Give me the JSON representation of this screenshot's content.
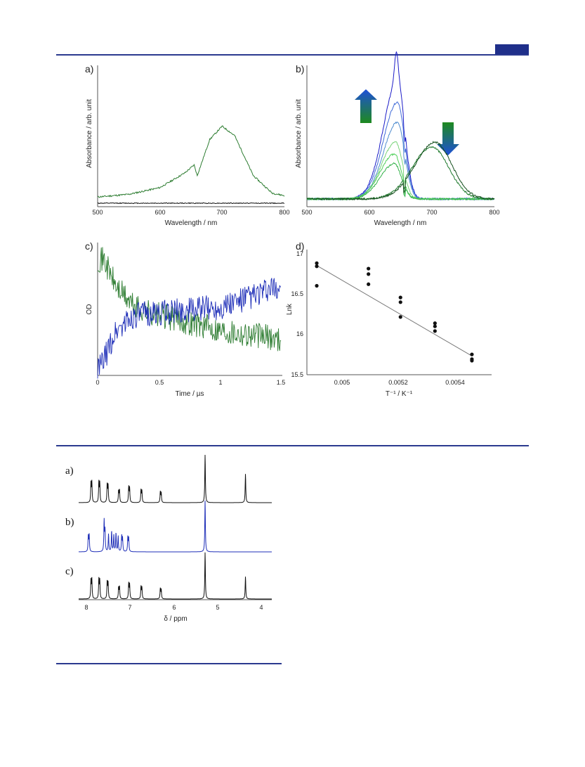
{
  "figure1": {
    "panel_a": {
      "label": "a)",
      "xlabel": "Wavelength / nm",
      "ylabel": "Absorbance / arb. unit",
      "xticks": [
        "500",
        "600",
        "700",
        "800"
      ]
    },
    "panel_b": {
      "label": "b)",
      "xlabel": "Wavelength / nm",
      "ylabel": "Absorbance / arb. unit",
      "xticks": [
        "500",
        "600",
        "700",
        "800"
      ]
    },
    "panel_c": {
      "label": "c)",
      "xlabel": "Time / µs",
      "ylabel": "OD",
      "xticks": [
        "0",
        "0.5",
        "1",
        "1.5"
      ]
    },
    "panel_d": {
      "label": "d)",
      "xlabel": "T⁻¹ / K⁻¹",
      "ylabel": "Lnk",
      "xticks": [
        "0.005",
        "0.0052",
        "0.0054"
      ],
      "yticks": [
        "15.5",
        "16",
        "16.5",
        "17"
      ]
    }
  },
  "figure2": {
    "labels": [
      "a)",
      "b)",
      "c)"
    ],
    "xlabel": "δ / ppm",
    "xticks": [
      "8",
      "7",
      "6",
      "5",
      "4"
    ]
  },
  "chart_data": [
    {
      "type": "line",
      "panel": "a",
      "xlabel": "Wavelength / nm",
      "ylabel": "Absorbance / arb. unit",
      "xlim": [
        500,
        800
      ],
      "series": [
        {
          "x": [
            500,
            550,
            600,
            640,
            655,
            660,
            680,
            700,
            720,
            750,
            780,
            800
          ],
          "values": [
            0.02,
            0.04,
            0.09,
            0.2,
            0.26,
            0.18,
            0.45,
            0.55,
            0.48,
            0.18,
            0.05,
            0.03
          ],
          "color": "#2e7d32"
        },
        {
          "x": [
            500,
            800
          ],
          "values": [
            0.0,
            0.0
          ],
          "color": "#111111"
        }
      ]
    },
    {
      "type": "line",
      "panel": "b",
      "xlabel": "Wavelength / nm",
      "ylabel": "Absorbance / arb. unit",
      "xlim": [
        500,
        800
      ],
      "series": [
        {
          "peak_nm": 645,
          "height": 1.0,
          "color": "#1c1cc8"
        },
        {
          "peak_nm": 645,
          "height": 0.82,
          "color": "#3f6ad8"
        },
        {
          "peak_nm": 645,
          "height": 0.65,
          "color": "#4f8ccf"
        },
        {
          "peak_nm": 642,
          "height": 0.48,
          "color": "#7ad47a"
        },
        {
          "peak_nm": 640,
          "height": 0.38,
          "color": "#4fd05a"
        },
        {
          "peak_nm": 640,
          "height": 0.3,
          "color": "#34b24a"
        },
        {
          "peak_nm": 700,
          "height": 0.44,
          "color": "#1e7a2c"
        },
        {
          "peak_nm": 705,
          "height": 0.48,
          "color": "#134f1c"
        }
      ],
      "arrows": [
        {
          "direction": "up",
          "colors": [
            "#1e8a1e",
            "#1e4fd8"
          ]
        },
        {
          "direction": "down",
          "colors": [
            "#1e8a1e",
            "#1e4fd8"
          ]
        }
      ]
    },
    {
      "type": "line",
      "panel": "c",
      "xlabel": "Time / µs",
      "ylabel": "OD",
      "xlim": [
        0,
        1.5
      ],
      "series": [
        {
          "color": "#2e7d32",
          "x": [
            0,
            0.05,
            0.15,
            0.3,
            0.5,
            1.0,
            1.5
          ],
          "values": [
            0.95,
            0.95,
            0.72,
            0.55,
            0.48,
            0.36,
            0.28
          ]
        },
        {
          "color": "#1f2fb8",
          "x": [
            0,
            0.05,
            0.15,
            0.3,
            0.5,
            1.0,
            1.5
          ],
          "values": [
            0.02,
            0.1,
            0.35,
            0.48,
            0.5,
            0.55,
            0.72
          ]
        }
      ]
    },
    {
      "type": "scatter",
      "panel": "d",
      "xlabel": "T⁻¹ / K⁻¹",
      "ylabel": "Lnk",
      "xlim": [
        0.0048,
        0.00555
      ],
      "ylim": [
        15.5,
        17.05
      ],
      "points": [
        {
          "x": 0.00484,
          "y": 16.93
        },
        {
          "x": 0.00484,
          "y": 16.89
        },
        {
          "x": 0.00484,
          "y": 16.64
        },
        {
          "x": 0.00505,
          "y": 16.86
        },
        {
          "x": 0.00505,
          "y": 16.79
        },
        {
          "x": 0.00505,
          "y": 16.66
        },
        {
          "x": 0.00518,
          "y": 16.49
        },
        {
          "x": 0.00518,
          "y": 16.43
        },
        {
          "x": 0.00518,
          "y": 16.24
        },
        {
          "x": 0.00532,
          "y": 16.16
        },
        {
          "x": 0.00532,
          "y": 16.12
        },
        {
          "x": 0.00532,
          "y": 16.06
        },
        {
          "x": 0.00547,
          "y": 15.76
        },
        {
          "x": 0.00547,
          "y": 15.7
        },
        {
          "x": 0.00547,
          "y": 15.68
        }
      ],
      "fit": {
        "x": [
          0.00484,
          0.00547
        ],
        "y": [
          16.9,
          15.74
        ]
      }
    },
    {
      "type": "line",
      "figure": "nmr",
      "xlabel": "δ / ppm",
      "xlim": [
        8.2,
        3.8
      ],
      "spectra": [
        {
          "label": "a)",
          "color": "#111111",
          "peaks_ppm": [
            7.92,
            7.9,
            7.74,
            7.72,
            7.55,
            7.53,
            7.29,
            7.27,
            7.06,
            7.04,
            6.78,
            6.76,
            6.34,
            6.32,
            5.32,
            4.4
          ],
          "heights": [
            0.4,
            0.42,
            0.42,
            0.4,
            0.38,
            0.36,
            0.24,
            0.26,
            0.32,
            0.3,
            0.26,
            0.24,
            0.22,
            0.2,
            1.0,
            0.6
          ]
        },
        {
          "label": "b)",
          "color": "#1f2fb8",
          "peaks_ppm": [
            7.98,
            7.96,
            7.62,
            7.6,
            7.52,
            7.45,
            7.4,
            7.35,
            7.3,
            7.22,
            7.2,
            7.08,
            7.06,
            5.32
          ],
          "heights": [
            0.3,
            0.32,
            0.6,
            0.4,
            0.34,
            0.4,
            0.32,
            0.36,
            0.3,
            0.3,
            0.26,
            0.28,
            0.26,
            1.0
          ]
        },
        {
          "label": "c)",
          "color": "#111111",
          "peaks_ppm": [
            7.92,
            7.9,
            7.74,
            7.72,
            7.55,
            7.53,
            7.29,
            7.27,
            7.06,
            7.04,
            6.78,
            6.76,
            6.34,
            6.32,
            5.32,
            4.4
          ],
          "heights": [
            0.36,
            0.38,
            0.38,
            0.36,
            0.34,
            0.32,
            0.22,
            0.24,
            0.3,
            0.28,
            0.24,
            0.22,
            0.2,
            0.18,
            0.92,
            0.44
          ]
        }
      ]
    }
  ]
}
